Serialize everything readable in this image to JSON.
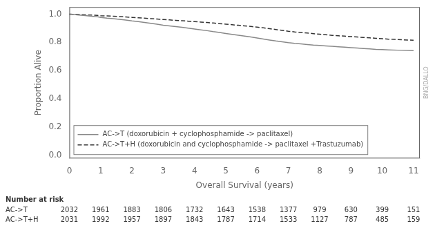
{
  "chart_data": {
    "type": "line",
    "x_label": "Overall Survival (years)",
    "y_label": "Proportion Alive",
    "x": [
      0,
      0.1,
      0.3,
      0.5,
      0.7,
      0.9,
      1.0,
      1.2,
      1.4,
      1.6,
      1.8,
      2.0,
      2.2,
      2.4,
      2.6,
      2.8,
      3.0,
      3.2,
      3.4,
      3.6,
      3.8,
      4.0,
      4.2,
      4.4,
      4.6,
      4.8,
      5.0,
      5.2,
      5.4,
      5.6,
      5.8,
      6.0,
      6.2,
      6.4,
      6.6,
      6.8,
      7.0,
      7.2,
      7.4,
      7.6,
      7.8,
      8.0,
      8.2,
      8.4,
      8.6,
      8.8,
      9.0,
      9.2,
      9.4,
      9.6,
      9.8,
      10.0,
      10.2,
      10.5,
      11.0
    ],
    "series": [
      {
        "name": "AC->T (doxorubicin + cyclophosphamide -> paclitaxel)",
        "color": "#888888",
        "line_style": "solid",
        "values": [
          1.0,
          0.998,
          0.994,
          0.99,
          0.985,
          0.981,
          0.977,
          0.972,
          0.968,
          0.963,
          0.958,
          0.952,
          0.947,
          0.941,
          0.935,
          0.929,
          0.922,
          0.917,
          0.912,
          0.907,
          0.901,
          0.895,
          0.889,
          0.883,
          0.876,
          0.87,
          0.863,
          0.857,
          0.851,
          0.845,
          0.838,
          0.831,
          0.824,
          0.817,
          0.81,
          0.804,
          0.798,
          0.793,
          0.789,
          0.785,
          0.781,
          0.778,
          0.775,
          0.772,
          0.769,
          0.766,
          0.763,
          0.76,
          0.757,
          0.754,
          0.751,
          0.749,
          0.747,
          0.745,
          0.742
        ]
      },
      {
        "name": "AC->T+H (doxorubicin and cyclophosphamide -> paclitaxel +Trastuzumab)",
        "color": "#333333",
        "line_style": "dashed",
        "values": [
          1.0,
          0.999,
          0.997,
          0.995,
          0.993,
          0.991,
          0.989,
          0.987,
          0.985,
          0.983,
          0.98,
          0.977,
          0.974,
          0.971,
          0.968,
          0.965,
          0.962,
          0.959,
          0.956,
          0.953,
          0.95,
          0.947,
          0.944,
          0.941,
          0.937,
          0.933,
          0.929,
          0.925,
          0.921,
          0.917,
          0.913,
          0.908,
          0.903,
          0.897,
          0.891,
          0.885,
          0.879,
          0.874,
          0.87,
          0.866,
          0.862,
          0.858,
          0.854,
          0.85,
          0.847,
          0.844,
          0.841,
          0.838,
          0.835,
          0.832,
          0.829,
          0.826,
          0.823,
          0.82,
          0.815
        ]
      }
    ],
    "xlim": [
      0,
      11.2
    ],
    "ylim": [
      -0.02,
      1.05
    ],
    "xticks": [
      0,
      1,
      2,
      3,
      4,
      5,
      6,
      7,
      8,
      9,
      10,
      11
    ],
    "yticks": [
      {
        "value": 0.0,
        "label": "0.0"
      },
      0.2,
      0.4,
      0.6,
      0.8,
      {
        "value": 1.0,
        "label": "1.0"
      }
    ],
    "grid": false,
    "legend": "lower left",
    "risk_table": {
      "title": "Number at risk",
      "times": [
        0,
        1,
        2,
        3,
        4,
        5,
        6,
        7,
        8,
        9,
        10,
        11
      ],
      "rows": [
        {
          "label": "AC->T",
          "values": [
            2032,
            1961,
            1883,
            1806,
            1732,
            1643,
            1538,
            1377,
            979,
            630,
            399,
            151
          ]
        },
        {
          "label": "AC->T+H",
          "values": [
            2031,
            1992,
            1957,
            1897,
            1843,
            1787,
            1714,
            1533,
            1127,
            787,
            485,
            159
          ]
        }
      ]
    },
    "watermark": "BNG/DALLO"
  }
}
